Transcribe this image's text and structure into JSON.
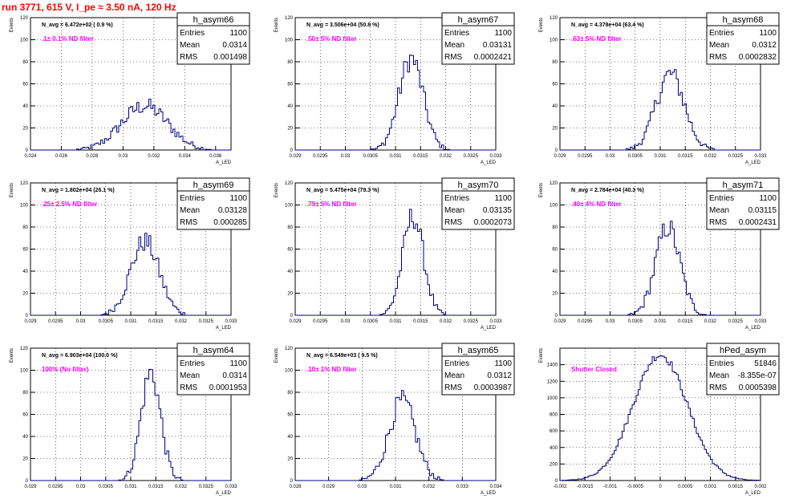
{
  "header": {
    "title": "run 3771,   615 V, I_pe ≈ 3.50 nA, 120 Hz"
  },
  "common": {
    "ylabel": "Events",
    "xlabel": "A_LED",
    "stats_labels": [
      "Entries",
      "Mean",
      "RMS"
    ]
  },
  "chart_data": [
    {
      "type": "bar",
      "name": "h_asym66",
      "navg": "N_avg = 6.472e+02 ( 0.9 %)",
      "filter": ".1± 0.1% ND filter",
      "stats": {
        "entries": "1100",
        "mean": "0.0314",
        "rms": "0.001498"
      },
      "xlim": [
        0.024,
        0.037
      ],
      "xticks": [
        "0.024",
        "0.026",
        "0.028",
        "0.03",
        "0.032",
        "0.034",
        "0.036"
      ],
      "ylim": [
        0,
        120
      ],
      "yticks": [
        "0",
        "20",
        "40",
        "60",
        "80",
        "100",
        "120"
      ],
      "mean": 0.0314,
      "sigma": 0.0015,
      "peak": 40
    },
    {
      "type": "bar",
      "name": "h_asym67",
      "navg": "N_avg = 3.506e+04 (50.8 %)",
      "filter": ".50± 5% ND filter",
      "stats": {
        "entries": "1100",
        "mean": "0.03131",
        "rms": "0.0002421"
      },
      "xlim": [
        0.029,
        0.033
      ],
      "xticks": [
        "0.029",
        "0.0295",
        "0.03",
        "0.0305",
        "0.031",
        "0.0315",
        "0.032",
        "0.0325",
        "0.033"
      ],
      "ylim": [
        0,
        120
      ],
      "yticks": [
        "0",
        "20",
        "40",
        "60",
        "80",
        "100",
        "120"
      ],
      "mean": 0.03131,
      "sigma": 0.000242,
      "peak": 83
    },
    {
      "type": "bar",
      "name": "h_asym68",
      "navg": "N_avg = 4.378e+04 (63.4 %)",
      "filter": ".63± 5% ND filter",
      "stats": {
        "entries": "1100",
        "mean": "0.0312",
        "rms": "0.0002832"
      },
      "xlim": [
        0.029,
        0.033
      ],
      "xticks": [
        "0.029",
        "0.0295",
        "0.03",
        "0.0305",
        "0.031",
        "0.0315",
        "0.032",
        "0.0325",
        "0.033"
      ],
      "ylim": [
        0,
        120
      ],
      "yticks": [
        "0",
        "20",
        "40",
        "60",
        "80",
        "100",
        "120"
      ],
      "mean": 0.0312,
      "sigma": 0.000283,
      "peak": 69
    },
    {
      "type": "bar",
      "name": "h_asym69",
      "navg": "N_avg = 1.802e+04 (26.1 %)",
      "filter": ".25± 2.5% ND filter",
      "stats": {
        "entries": "1100",
        "mean": "0.03128",
        "rms": "0.000285"
      },
      "xlim": [
        0.029,
        0.033
      ],
      "xticks": [
        "0.029",
        "0.0295",
        "0.03",
        "0.0305",
        "0.031",
        "0.0315",
        "0.032",
        "0.0325",
        "0.033"
      ],
      "ylim": [
        0,
        120
      ],
      "yticks": [
        "0",
        "20",
        "40",
        "60",
        "80",
        "100",
        "120"
      ],
      "mean": 0.03128,
      "sigma": 0.000285,
      "peak": 67
    },
    {
      "type": "bar",
      "name": "h_asym70",
      "navg": "N_avg = 5.475e+04 (79.3 %)",
      "filter": ".79± 5% ND filter",
      "stats": {
        "entries": "1100",
        "mean": "0.03135",
        "rms": "0.0002073"
      },
      "xlim": [
        0.029,
        0.033
      ],
      "xticks": [
        "0.029",
        "0.0295",
        "0.03",
        "0.0305",
        "0.031",
        "0.0315",
        "0.032",
        "0.0325",
        "0.033"
      ],
      "ylim": [
        0,
        120
      ],
      "yticks": [
        "0",
        "20",
        "40",
        "60",
        "80",
        "100",
        "120"
      ],
      "mean": 0.03135,
      "sigma": 0.000207,
      "peak": 90
    },
    {
      "type": "bar",
      "name": "h_asym71",
      "navg": "N_avg = 2.784e+04 (40.3 %)",
      "filter": ".40± 4% ND filter",
      "stats": {
        "entries": "1100",
        "mean": "0.03115",
        "rms": "0.0002431"
      },
      "xlim": [
        0.029,
        0.033
      ],
      "xticks": [
        "0.029",
        "0.0295",
        "0.03",
        "0.0305",
        "0.031",
        "0.0315",
        "0.032",
        "0.0325",
        "0.033"
      ],
      "ylim": [
        0,
        120
      ],
      "yticks": [
        "0",
        "20",
        "40",
        "60",
        "80",
        "100",
        "120"
      ],
      "mean": 0.03115,
      "sigma": 0.000243,
      "peak": 80
    },
    {
      "type": "bar",
      "name": "h_asym64",
      "navg": "N_avg = 6.903e+04 (100.0 %)",
      "filter": "100% (No filter)",
      "stats": {
        "entries": "1100",
        "mean": "0.0314",
        "rms": "0.0001953"
      },
      "xlim": [
        0.029,
        0.033
      ],
      "xticks": [
        "0.029",
        "0.0295",
        "0.03",
        "0.0305",
        "0.031",
        "0.0315",
        "0.032",
        "0.0325",
        "0.033"
      ],
      "ylim": [
        0,
        120
      ],
      "yticks": [
        "0",
        "20",
        "40",
        "60",
        "80",
        "100",
        "120"
      ],
      "mean": 0.0314,
      "sigma": 0.000195,
      "peak": 98
    },
    {
      "type": "bar",
      "name": "h_asym65",
      "navg": "N_avg = 6.549e+03 ( 9.5 %)",
      "filter": ".10± 1% ND filter",
      "stats": {
        "entries": "1100",
        "mean": "0.0312",
        "rms": "0.0003987"
      },
      "xlim": [
        0.028,
        0.034
      ],
      "xticks": [
        "0.028",
        "0.029",
        "0.03",
        "0.031",
        "0.032",
        "0.033",
        "0.034"
      ],
      "ylim": [
        0,
        120
      ],
      "yticks": [
        "0",
        "20",
        "40",
        "60",
        "80",
        "100",
        "120"
      ],
      "mean": 0.0312,
      "sigma": 0.0004,
      "peak": 72
    },
    {
      "type": "bar",
      "name": "hPed_asym",
      "navg": "",
      "filter": "Shutter Closed",
      "stats": {
        "entries": "51846",
        "mean": "-8.355e-07",
        "rms": "0.0005398"
      },
      "xlim": [
        -0.002,
        0.002
      ],
      "xticks": [
        "-0.002",
        "-0.0015",
        "-0.001",
        "-0.0005",
        "0",
        "0.0005",
        "0.001",
        "0.0015",
        "0.002"
      ],
      "ylim": [
        0,
        1600
      ],
      "yticks": [
        "0",
        "200",
        "400",
        "600",
        "800",
        "1000",
        "1200",
        "1400"
      ],
      "mean": 0.0,
      "sigma": 0.00054,
      "peak": 1520
    }
  ]
}
